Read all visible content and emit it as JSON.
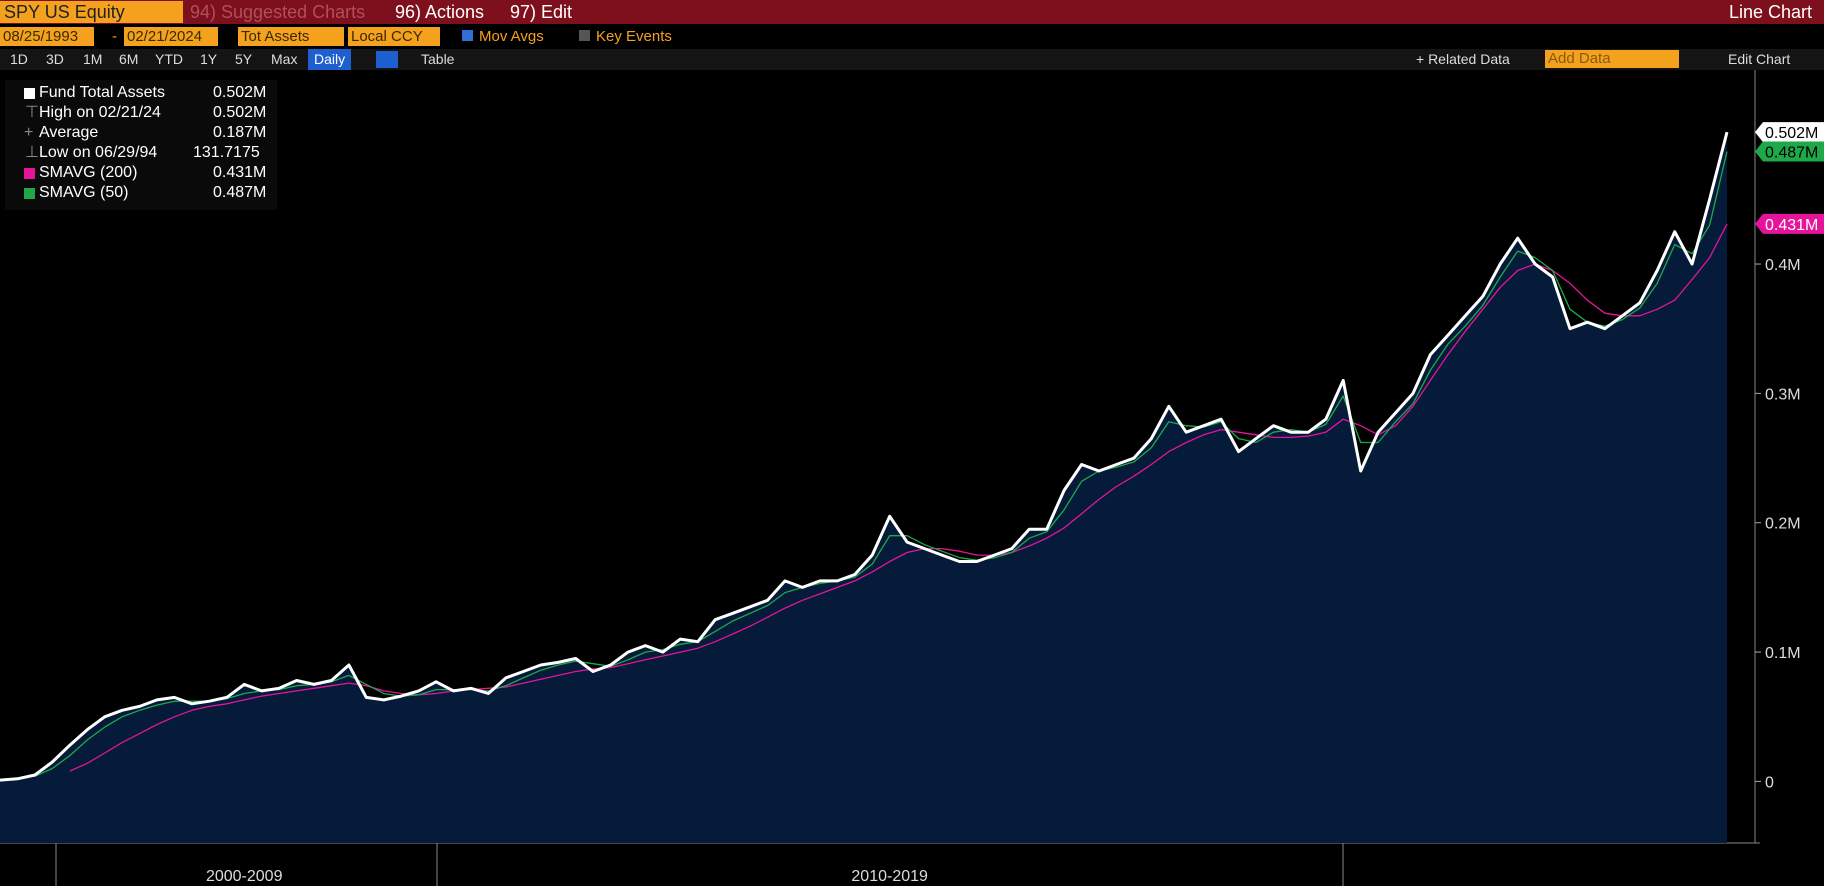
{
  "toolbar": {
    "security": "SPY US Equity",
    "menus": [
      "94) Suggested Charts",
      "96) Actions",
      "97) Edit"
    ],
    "chart_type": "Line Chart",
    "start_date": "08/25/1993",
    "date_sep": "-",
    "end_date": "02/21/2024",
    "field": "Tot Assets",
    "currency": "Local CCY",
    "mov_avgs": "Mov Avgs",
    "key_events": "Key Events",
    "periods": [
      "1D",
      "3D",
      "1M",
      "6M",
      "YTD",
      "1Y",
      "5Y",
      "Max"
    ],
    "frequency": "Daily",
    "table": "Table",
    "related_data": "+ Related Data",
    "add_data": "Add Data",
    "edit_chart": "Edit Chart"
  },
  "chart_data": {
    "type": "line",
    "categories": [
      null,
      null,
      null,
      null,
      null,
      null,
      null,
      null,
      null,
      null,
      null,
      null,
      null,
      null,
      "2000-2009",
      null,
      null,
      null,
      null,
      null,
      null,
      null,
      null,
      null,
      null,
      null,
      null,
      null,
      null,
      null,
      null,
      null,
      null,
      null,
      null,
      null,
      null,
      null,
      null,
      null,
      null,
      null,
      null,
      null,
      null,
      null,
      null,
      null,
      null,
      null,
      null,
      "2010-2019",
      null,
      null,
      null,
      null,
      null,
      null,
      null,
      null,
      null,
      null,
      null,
      null,
      null,
      null,
      null,
      null,
      null,
      null,
      null,
      null,
      null,
      null,
      null,
      null,
      null,
      null,
      null,
      null,
      null,
      null,
      null,
      null,
      null,
      null,
      null,
      null,
      null,
      null,
      null,
      null,
      null,
      null,
      null,
      null,
      null,
      null,
      null,
      null
    ],
    "series": [
      {
        "name": "Fund Total Assets",
        "color": "#ffffff",
        "value_label": "0.502M",
        "values": [
          1000,
          2000,
          5000,
          15000,
          28000,
          40000,
          50000,
          55000,
          58000,
          63000,
          65000,
          60000,
          62000,
          65000,
          75000,
          70000,
          72000,
          78000,
          75000,
          78000,
          90000,
          65000,
          63000,
          66000,
          70000,
          77000,
          70000,
          72000,
          68000,
          80000,
          85000,
          90000,
          92000,
          95000,
          85000,
          90000,
          100000,
          105000,
          100000,
          110000,
          108000,
          125000,
          130000,
          135000,
          140000,
          155000,
          150000,
          155000,
          155000,
          160000,
          175000,
          205000,
          185000,
          180000,
          175000,
          170000,
          170000,
          175000,
          180000,
          195000,
          195000,
          225000,
          245000,
          240000,
          245000,
          250000,
          265000,
          290000,
          270000,
          275000,
          280000,
          255000,
          265000,
          275000,
          270000,
          270000,
          280000,
          310000,
          240000,
          270000,
          285000,
          300000,
          330000,
          345000,
          360000,
          375000,
          400000,
          420000,
          400000,
          390000,
          350000,
          355000,
          350000,
          360000,
          370000,
          395000,
          425000,
          400000,
          450000,
          502000
        ]
      },
      {
        "name": "SMAVG (200)",
        "color": "#e5149b",
        "value_label": "0.431M",
        "values": [
          null,
          null,
          null,
          null,
          8000,
          14000,
          22000,
          30000,
          37000,
          44000,
          50000,
          55000,
          58000,
          60000,
          63000,
          66000,
          68000,
          70000,
          72000,
          74000,
          76000,
          74000,
          70000,
          68000,
          67000,
          68000,
          70000,
          71000,
          72000,
          73000,
          76000,
          79000,
          82000,
          85000,
          87000,
          88000,
          91000,
          94000,
          97000,
          100000,
          103000,
          108000,
          114000,
          120000,
          127000,
          134000,
          140000,
          145000,
          150000,
          155000,
          162000,
          170000,
          177000,
          180000,
          180000,
          178000,
          175000,
          175000,
          177000,
          182000,
          188000,
          196000,
          207000,
          218000,
          228000,
          236000,
          245000,
          255000,
          262000,
          268000,
          272000,
          270000,
          268000,
          266000,
          266000,
          267000,
          270000,
          280000,
          275000,
          268000,
          275000,
          290000,
          310000,
          330000,
          348000,
          365000,
          382000,
          395000,
          400000,
          395000,
          385000,
          372000,
          362000,
          360000,
          360000,
          365000,
          372000,
          388000,
          405000,
          431000
        ]
      },
      {
        "name": "SMAVG (50)",
        "color": "#1fa84a",
        "value_label": "0.487M",
        "values": [
          null,
          null,
          4000,
          10000,
          20000,
          32000,
          42000,
          50000,
          55000,
          59000,
          62000,
          62000,
          62000,
          64000,
          68000,
          70000,
          71000,
          74000,
          75000,
          77000,
          82000,
          75000,
          68000,
          66000,
          67000,
          71000,
          71000,
          71000,
          70000,
          74000,
          80000,
          86000,
          90000,
          93000,
          91000,
          89000,
          94000,
          100000,
          102000,
          106000,
          108000,
          116000,
          124000,
          130000,
          136000,
          146000,
          150000,
          153000,
          155000,
          158000,
          168000,
          190000,
          190000,
          183000,
          178000,
          173000,
          171000,
          173000,
          177000,
          188000,
          193000,
          210000,
          232000,
          240000,
          243000,
          247000,
          258000,
          278000,
          275000,
          274000,
          278000,
          265000,
          262000,
          270000,
          272000,
          270000,
          276000,
          298000,
          262000,
          262000,
          278000,
          292000,
          318000,
          338000,
          352000,
          368000,
          390000,
          410000,
          405000,
          395000,
          365000,
          355000,
          352000,
          357000,
          366000,
          385000,
          415000,
          408000,
          430000,
          487000
        ]
      }
    ],
    "stats": [
      {
        "name": "High on 02/21/24",
        "value": 502000,
        "value_label": "0.502M"
      },
      {
        "name": "Average",
        "value": 187000,
        "value_label": "0.187M"
      },
      {
        "name": "Low on 06/29/94",
        "value": 131.7175
      }
    ],
    "area_color": "#051b39",
    "ylim": [
      -47600,
      550000
    ],
    "yticks": [
      0,
      {
        "value": 100000,
        "label": "0.1M"
      },
      {
        "value": 200000,
        "label": "0.2M"
      },
      {
        "value": 300000,
        "label": "0.3M"
      },
      {
        "value": 400000,
        "label": "0.4M"
      }
    ],
    "grid": false
  }
}
